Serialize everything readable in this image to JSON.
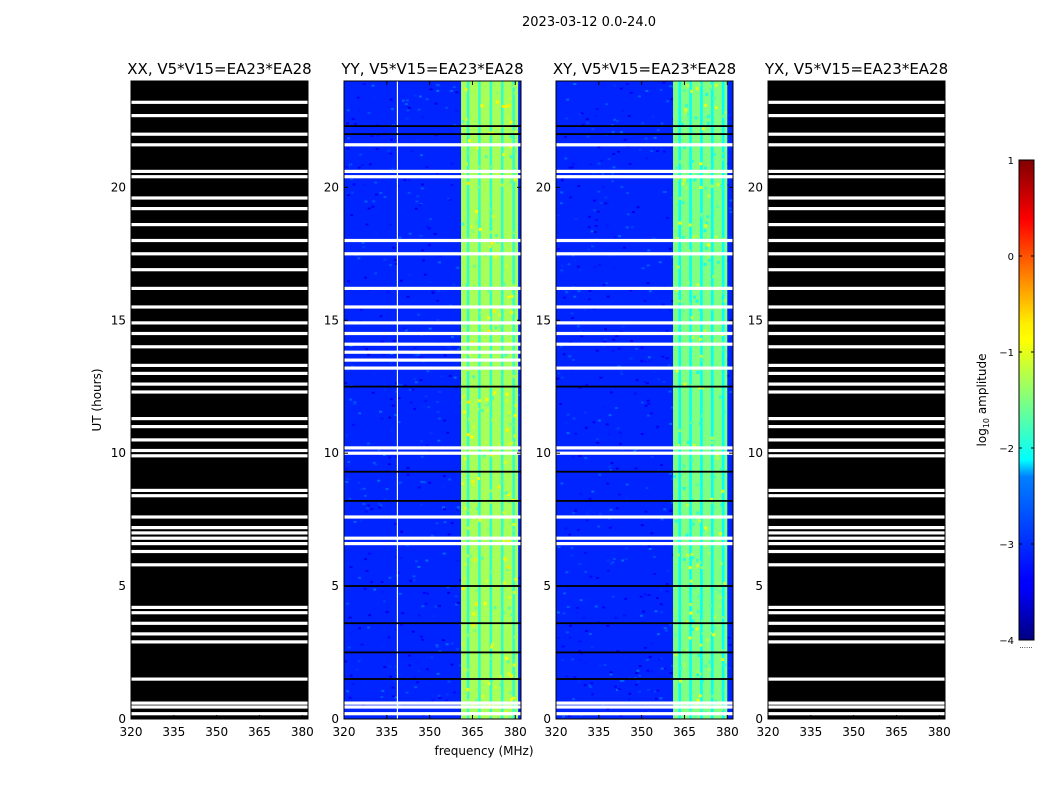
{
  "figure": {
    "suptitle": "2023-03-12 0.0-24.0",
    "xlabel": "frequency (MHz)",
    "ylabel": "UT (hours)",
    "colorbar_label": "log",
    "colorbar_label_sub": "10",
    "colorbar_label_suffix": " amplitude",
    "colorbar_ticks": [
      "1",
      "0",
      "−1",
      "−2",
      "−3",
      "−4"
    ],
    "colorbar_dots": "......"
  },
  "chart_data": [
    {
      "type": "heatmap",
      "title": "XX, V5*V15=EA23*EA28",
      "x_range_mhz": [
        320,
        382
      ],
      "y_range_hours": [
        0,
        24
      ],
      "x_ticks": [
        "320",
        "335",
        "350",
        "365",
        "380"
      ],
      "y_ticks": [
        "0",
        "5",
        "10",
        "15",
        "20"
      ],
      "background_color": "#000000",
      "flagged_hours_white": [
        0.2,
        0.45,
        0.6,
        1.5,
        2.9,
        3.2,
        3.6,
        4.0,
        4.2,
        5.8,
        6.3,
        6.6,
        6.8,
        7.0,
        7.2,
        7.6,
        8.4,
        8.6,
        9.9,
        10.1,
        10.5,
        11.0,
        11.3,
        12.3,
        12.6,
        13.0,
        13.3,
        14.0,
        14.5,
        14.9,
        15.5,
        16.2,
        16.9,
        17.5,
        18.0,
        18.6,
        19.2,
        19.6,
        20.4,
        20.6,
        21.6,
        22.0,
        22.7,
        23.2
      ]
    },
    {
      "type": "heatmap",
      "title": "YY, V5*V15=EA23*EA28",
      "x_range_mhz": [
        320,
        382
      ],
      "y_range_hours": [
        0,
        24
      ],
      "x_ticks": [
        "320",
        "335",
        "350",
        "365",
        "380"
      ],
      "y_ticks": [
        "0",
        "5",
        "10",
        "15",
        "20"
      ],
      "noise_log10_amplitude": -3.2,
      "bright_band_mhz": [
        361,
        381
      ],
      "bright_band_log10_amplitude": -1.3,
      "vertical_white_lines_mhz": [
        338.5
      ],
      "flagged_hours_white": [
        0.2,
        0.45,
        0.6,
        6.6,
        6.8,
        7.6,
        10.0,
        10.2,
        13.2,
        13.5,
        13.8,
        14.1,
        14.5,
        14.9,
        15.5,
        16.2,
        17.5,
        18.0,
        20.4,
        20.6,
        21.6
      ],
      "flagged_hours_black": [
        1.5,
        2.5,
        3.6,
        5.0,
        8.2,
        9.3,
        12.5,
        22.0,
        22.3
      ]
    },
    {
      "type": "heatmap",
      "title": "XY, V5*V15=EA23*EA28",
      "x_range_mhz": [
        320,
        382
      ],
      "y_range_hours": [
        0,
        24
      ],
      "x_ticks": [
        "320",
        "335",
        "350",
        "365",
        "380"
      ],
      "y_ticks": [
        "0",
        "5",
        "10",
        "15",
        "20"
      ],
      "noise_log10_amplitude": -3.2,
      "bright_band_mhz": [
        361,
        380
      ],
      "bright_band_log10_amplitude": -1.5,
      "vertical_white_lines_mhz": [],
      "flagged_hours_white": [
        0.2,
        0.45,
        0.6,
        6.6,
        6.8,
        7.6,
        10.0,
        10.2,
        13.2,
        14.1,
        14.5,
        14.9,
        15.5,
        16.2,
        17.5,
        18.0,
        20.4,
        20.6,
        21.6
      ],
      "flagged_hours_black": [
        1.5,
        2.5,
        3.6,
        5.0,
        8.2,
        9.3,
        12.5,
        22.0,
        22.3
      ]
    },
    {
      "type": "heatmap",
      "title": "YX, V5*V15=EA23*EA28",
      "x_range_mhz": [
        320,
        382
      ],
      "y_range_hours": [
        0,
        24
      ],
      "x_ticks": [
        "320",
        "335",
        "350",
        "365",
        "380"
      ],
      "y_ticks": [
        "0",
        "5",
        "10",
        "15",
        "20"
      ],
      "background_color": "#000000",
      "flagged_hours_white": [
        0.2,
        0.45,
        0.6,
        1.5,
        2.9,
        3.2,
        3.6,
        4.0,
        4.2,
        5.8,
        6.3,
        6.6,
        6.8,
        7.0,
        7.2,
        7.6,
        8.4,
        8.6,
        9.9,
        10.1,
        10.5,
        11.0,
        11.3,
        12.3,
        12.6,
        13.0,
        13.3,
        14.0,
        14.5,
        14.9,
        15.5,
        16.2,
        16.9,
        17.5,
        18.0,
        18.6,
        19.2,
        19.6,
        20.4,
        20.6,
        21.6,
        22.0,
        22.7,
        23.2
      ]
    }
  ],
  "colorbar": {
    "range_log10": [
      -4,
      1
    ],
    "colormap": "jet"
  }
}
